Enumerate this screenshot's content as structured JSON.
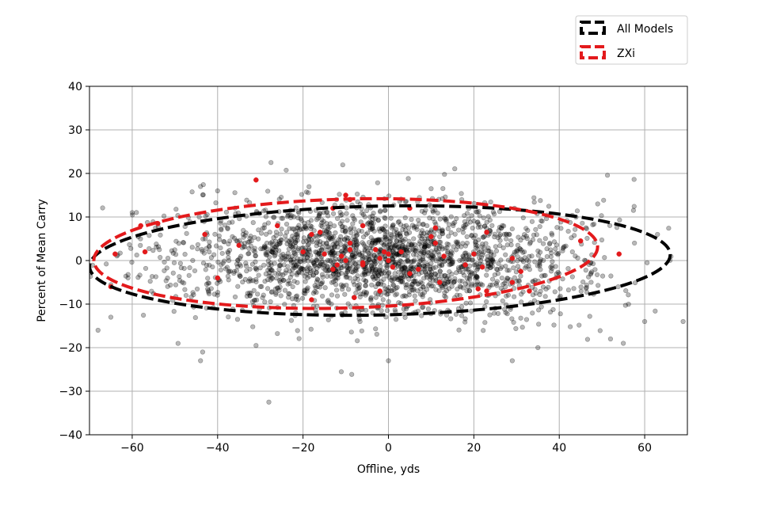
{
  "chart_data": {
    "type": "scatter",
    "title": "",
    "xlabel": "Offline, yds",
    "ylabel": "Percent of Mean Carry",
    "xlim": [
      -70,
      70
    ],
    "ylim": [
      -40,
      40
    ],
    "xticks": [
      -60,
      -40,
      -20,
      0,
      20,
      40,
      60
    ],
    "yticks": [
      -40,
      -30,
      -20,
      -10,
      0,
      10,
      20,
      30,
      40
    ],
    "xtick_labels": [
      "−60",
      "−40",
      "−20",
      "0",
      "20",
      "40",
      "60"
    ],
    "ytick_labels": [
      "−40",
      "−30",
      "−20",
      "−10",
      "0",
      "10",
      "20",
      "30",
      "40"
    ],
    "grid": true,
    "legend_position": "top-right",
    "series": [
      {
        "name": "All Models",
        "color": "#000000",
        "alpha": 0.28,
        "point_count": 2200,
        "distribution": {
          "x_center": -2,
          "x_sd": 24,
          "x_range": [
            -70,
            70
          ],
          "y_center": 0.5,
          "y_sd": 6.5,
          "y_range": [
            -33,
            23
          ]
        },
        "highlighted_points": [
          [
            -27.5,
            22.5
          ],
          [
            -28,
            -32.5
          ],
          [
            -31,
            -19.5
          ],
          [
            -44,
            -23
          ],
          [
            -43.5,
            -21
          ],
          [
            -40,
            16
          ],
          [
            -44,
            17
          ],
          [
            -60,
            11
          ],
          [
            -68,
            -16
          ],
          [
            -65,
            -13
          ],
          [
            10,
            16.5
          ],
          [
            0,
            -23
          ],
          [
            29,
            -23
          ],
          [
            52,
            -18
          ],
          [
            55,
            -19
          ],
          [
            60,
            -14
          ],
          [
            63,
            6
          ],
          [
            49,
            13
          ],
          [
            69,
            -14
          ],
          [
            35,
            -20
          ]
        ],
        "ellipse": {
          "cx": -2,
          "cy": 0,
          "rx": 68,
          "ry": 12.5,
          "rotation_deg": 1.2,
          "style": "dashed"
        }
      },
      {
        "name": "ZXi",
        "color": "#e31a1c",
        "alpha": 1.0,
        "points": [
          [
            -31,
            18.5
          ],
          [
            -10,
            15
          ],
          [
            -9,
            14
          ],
          [
            -13,
            12
          ],
          [
            5,
            12
          ],
          [
            -6,
            8
          ],
          [
            -26,
            8
          ],
          [
            -16,
            6.5
          ],
          [
            -54,
            8.5
          ],
          [
            -58,
            8
          ],
          [
            -43,
            6
          ],
          [
            -18,
            6
          ],
          [
            -35,
            3.5
          ],
          [
            -57,
            2
          ],
          [
            -20,
            2
          ],
          [
            -15,
            1.5
          ],
          [
            -11,
            1
          ],
          [
            -10,
            0
          ],
          [
            -12,
            -1
          ],
          [
            -9,
            2.5
          ],
          [
            -3,
            2.5
          ],
          [
            -1,
            2
          ],
          [
            0,
            1.5
          ],
          [
            0,
            0
          ],
          [
            3,
            2
          ],
          [
            1,
            -1.5
          ],
          [
            -6,
            -0.5
          ],
          [
            -13,
            -2
          ],
          [
            -9,
            4
          ],
          [
            -2,
            0.5
          ],
          [
            10,
            5.5
          ],
          [
            11,
            7.5
          ],
          [
            11,
            4
          ],
          [
            13,
            1
          ],
          [
            20,
            1.5
          ],
          [
            18,
            -1
          ],
          [
            22,
            -1.5
          ],
          [
            29,
            0.5
          ],
          [
            31,
            -2.5
          ],
          [
            23,
            6.5
          ],
          [
            45,
            4.5
          ],
          [
            54,
            1.5
          ],
          [
            -6,
            -1
          ],
          [
            -40,
            -4
          ],
          [
            -64,
            1.5
          ],
          [
            -65,
            -6
          ],
          [
            -18,
            -9
          ],
          [
            -8,
            -8.5
          ],
          [
            -2,
            -7
          ],
          [
            21,
            -6.5
          ],
          [
            23,
            -7
          ],
          [
            29,
            -5
          ],
          [
            33,
            -7
          ],
          [
            12,
            -5
          ],
          [
            5,
            -3
          ],
          [
            7,
            -2
          ]
        ],
        "ellipse": {
          "cx": -10,
          "cy": 1.6,
          "rx": 59,
          "ry": 12.5,
          "rotation_deg": 1.6,
          "style": "dashed"
        }
      }
    ]
  }
}
